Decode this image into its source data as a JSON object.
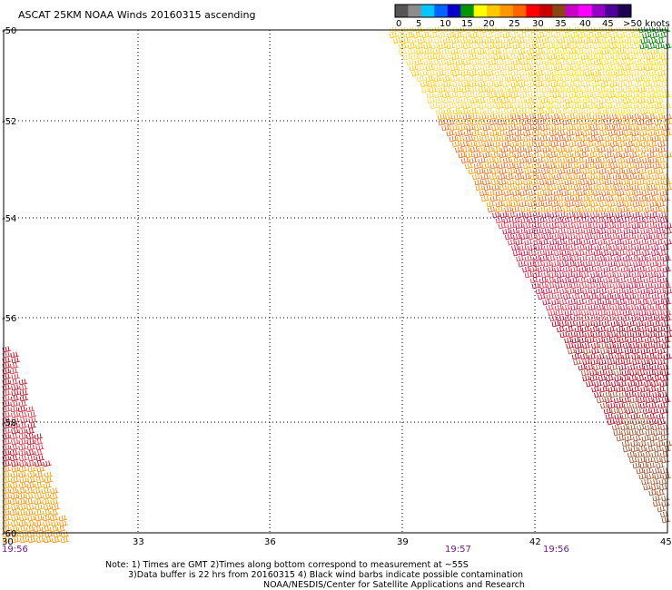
{
  "title": "ASCAT 25KM NOAA Winds 20160315 ascending",
  "legend": {
    "colors": [
      "#555555",
      "#8c8c8c",
      "#00c8ff",
      "#0064ff",
      "#0000c8",
      "#009600",
      "#ffff00",
      "#ffc800",
      "#ff9600",
      "#ff6400",
      "#ff0000",
      "#c80000",
      "#8b4513",
      "#c800c8",
      "#ff00ff",
      "#9600c8",
      "#500096",
      "#1e0050"
    ],
    "labels": [
      "0",
      "5",
      "10",
      "15",
      "20",
      "25",
      "30",
      "35",
      "40",
      "45",
      ">50 knots"
    ]
  },
  "lat_labels": [
    "-50",
    "-52",
    "-54",
    "-56",
    "-58",
    "-60"
  ],
  "lon_labels": [
    "30",
    "33",
    "36",
    "39",
    "42",
    "45"
  ],
  "times": [
    "19:56",
    "19:57",
    "19:56"
  ],
  "notes": [
    "Note: 1) Times are GMT 2)Times along bottom correspond to measurement at ~55S",
    "3)Data buffer is 22 hrs from 20160315 4) Black wind barbs indicate possible contamination",
    "NOAA/NESDIS/Center for Satellite Applications and Research"
  ]
}
